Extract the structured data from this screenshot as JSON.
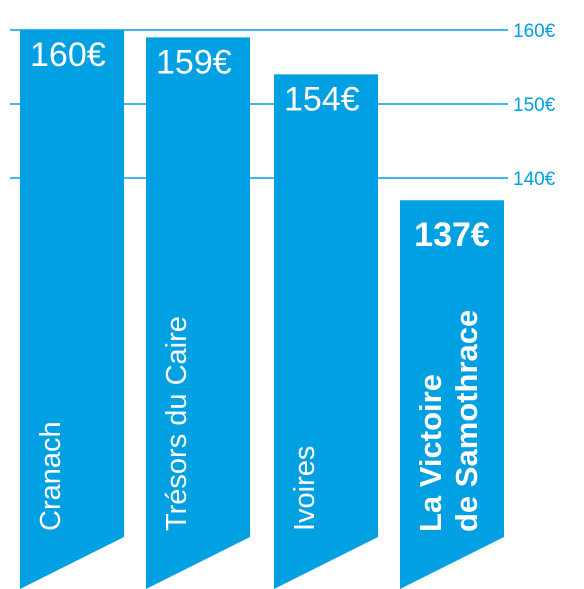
{
  "chart_data": {
    "type": "bar",
    "categories": [
      "Cranach",
      "Trésors du Caire",
      "Ivoires",
      "La Victoire de Samothrace"
    ],
    "category_lines": [
      [
        "Cranach"
      ],
      [
        "Trésors du Caire"
      ],
      [
        "Ivoires"
      ],
      [
        "La Victoire",
        "de Samothrace"
      ]
    ],
    "values": [
      160,
      159,
      154,
      137
    ],
    "value_labels": [
      "160€",
      "159€",
      "154€",
      "137€"
    ],
    "highlight_index": 3,
    "yticks": [
      140,
      150,
      160
    ],
    "ytick_labels": [
      "140€",
      "150€",
      "160€"
    ],
    "grid": true,
    "colors": {
      "bar": "#00a0e2",
      "grid": "#00a0e2",
      "tick_text": "#00a0e2",
      "bar_text": "#ffffff"
    }
  }
}
